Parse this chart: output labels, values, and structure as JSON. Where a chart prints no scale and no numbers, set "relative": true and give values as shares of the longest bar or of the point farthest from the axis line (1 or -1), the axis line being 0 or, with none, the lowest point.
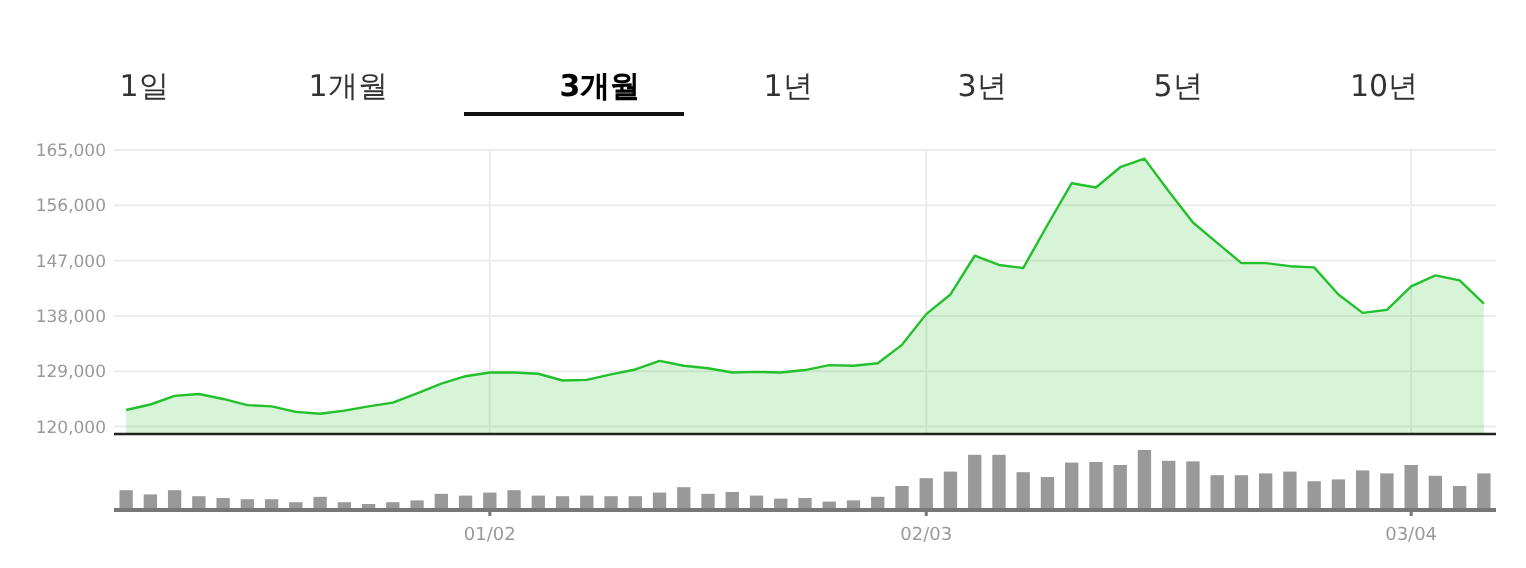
{
  "chart_data": [
    {
      "type": "area",
      "annotations": [
        "1일",
        "1개월",
        "3개월",
        "1년",
        "3년",
        "5년",
        "10년"
      ],
      "categories": [
        null,
        null,
        null,
        null,
        null,
        null,
        null,
        null,
        null,
        null,
        null,
        null,
        null,
        null,
        null,
        null,
        null,
        null,
        null,
        null,
        null,
        null,
        null,
        null,
        null,
        null,
        null,
        null,
        null,
        null,
        null,
        null,
        null,
        null,
        null,
        null,
        null,
        null,
        null,
        null,
        null,
        null,
        null,
        null,
        null,
        null,
        null,
        null,
        null,
        null,
        null,
        null,
        null,
        null,
        null,
        null,
        null
      ],
      "series": [
        {
          "color": "#22c02a",
          "values": [
            122700,
            123600,
            125000,
            125300,
            124500,
            123500,
            123300,
            122400,
            122100,
            122600,
            123300,
            123900,
            125400,
            127000,
            128200,
            128800,
            128800,
            128600,
            127500,
            127600,
            128500,
            129300,
            130700,
            129900,
            129500,
            128800,
            128900,
            128800,
            129200,
            130000,
            129900,
            130300,
            133300,
            138300,
            141500,
            147800,
            146300,
            145800,
            152800,
            159600,
            158900,
            162200,
            163600,
            158300,
            153200,
            149900,
            146600,
            146600,
            146100,
            145900,
            141500,
            138500,
            139000,
            142800,
            144600,
            143800,
            140000
          ]
        }
      ],
      "ylim": [
        118800,
        165000
      ],
      "yticks": [
        {
          "value": 120000,
          "label": "120,000"
        },
        {
          "value": 129000,
          "label": "129,000"
        },
        {
          "value": 138000,
          "label": "138,000"
        },
        {
          "value": 147000,
          "label": "147,000"
        },
        {
          "value": 156000,
          "label": "156,000"
        },
        {
          "value": 165000,
          "label": "165,000"
        }
      ],
      "grid": true,
      "tick_labels": "y"
    },
    {
      "type": "bar",
      "relative": true,
      "categories": [
        null,
        null,
        null,
        null,
        null,
        null,
        null,
        null,
        null,
        null,
        null,
        null,
        null,
        null,
        null,
        "01/02",
        null,
        null,
        null,
        null,
        null,
        null,
        null,
        null,
        null,
        null,
        null,
        null,
        null,
        null,
        null,
        null,
        null,
        "02/03",
        null,
        null,
        null,
        null,
        null,
        null,
        null,
        null,
        null,
        null,
        null,
        null,
        null,
        null,
        null,
        null,
        null,
        null,
        null,
        "03/04",
        null,
        null,
        null
      ],
      "series": [
        {
          "color": "#999999",
          "values": [
            0.33,
            0.26,
            0.33,
            0.23,
            0.2,
            0.18,
            0.18,
            0.13,
            0.22,
            0.13,
            0.1,
            0.13,
            0.16,
            0.27,
            0.24,
            0.29,
            0.33,
            0.24,
            0.23,
            0.24,
            0.23,
            0.23,
            0.29,
            0.38,
            0.27,
            0.3,
            0.24,
            0.19,
            0.2,
            0.14,
            0.16,
            0.22,
            0.4,
            0.53,
            0.64,
            0.92,
            0.92,
            0.63,
            0.55,
            0.79,
            0.8,
            0.75,
            1,
            0.82,
            0.81,
            0.58,
            0.58,
            0.61,
            0.64,
            0.48,
            0.51,
            0.66,
            0.61,
            0.75,
            0.57,
            0.4,
            0.61
          ]
        }
      ]
    }
  ]
}
